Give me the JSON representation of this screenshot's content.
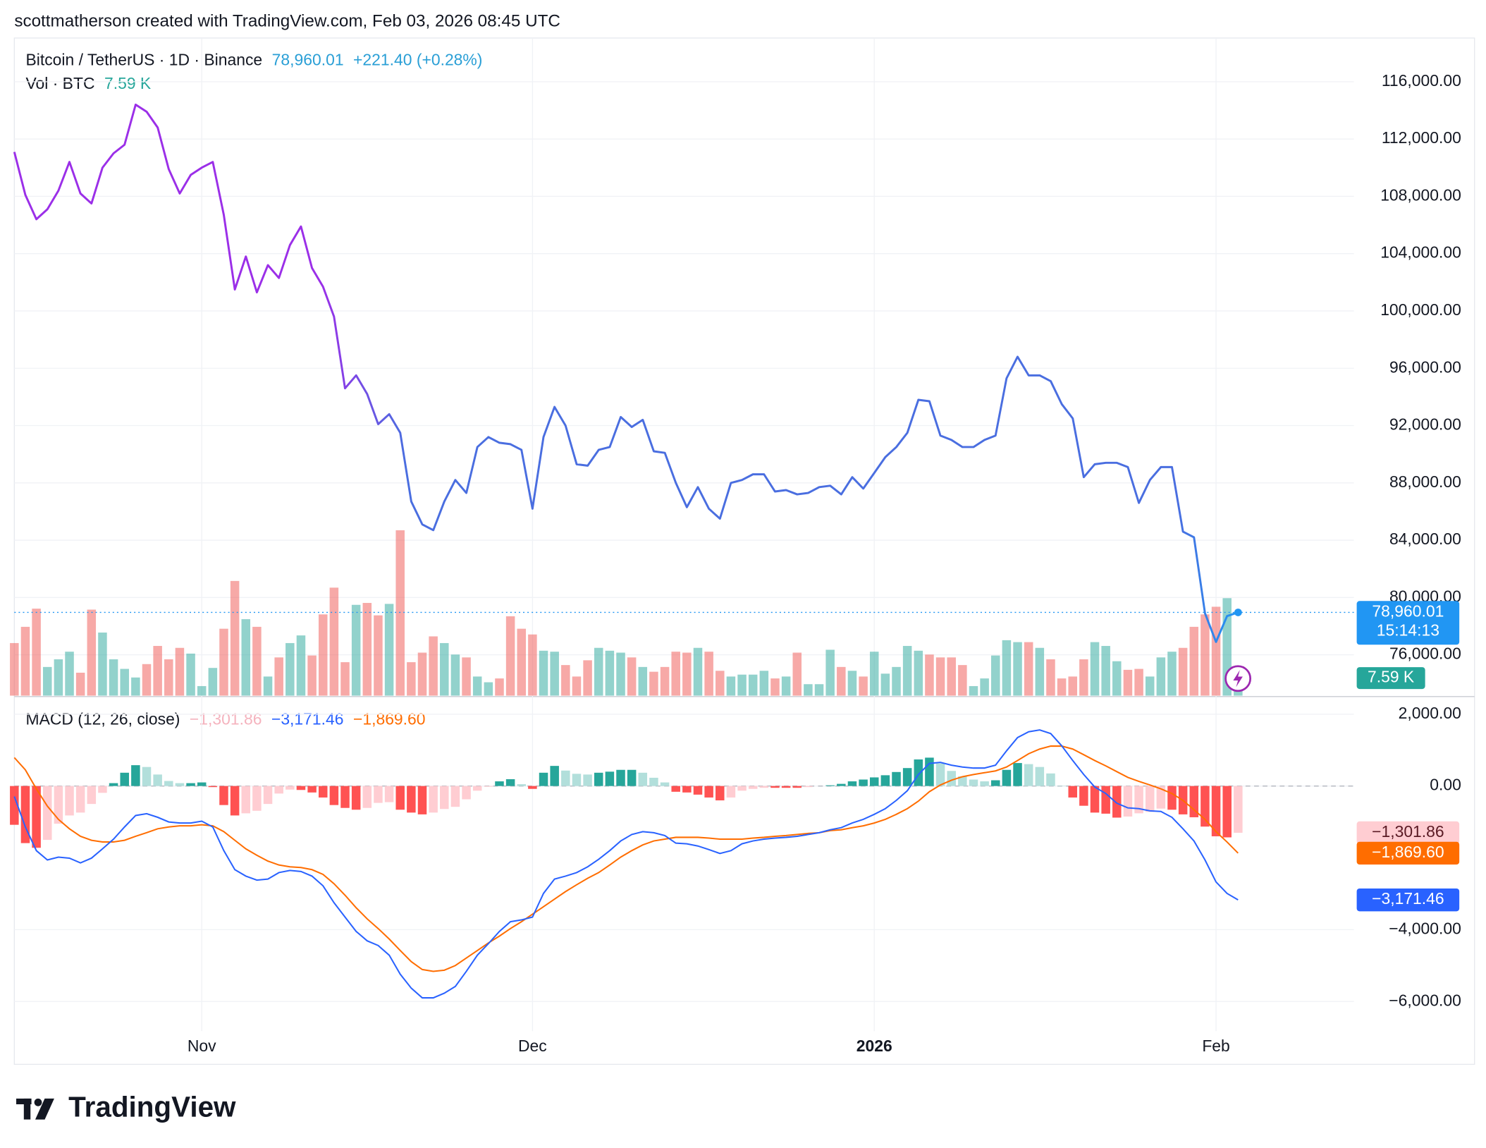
{
  "header": {
    "attribution": "scottmatherson created with TradingView.com, Feb 03, 2026 08:45 UTC",
    "brand": "TradingView"
  },
  "chart_data": [
    {
      "type": "line",
      "title": "Bitcoin / TetherUS · 1D · Binance",
      "last_label": "78,960.01",
      "change": "+221.40 (+0.28%)",
      "countdown": "15:14:13",
      "colors": [
        "#9b2fe8",
        "#4a6ee0",
        "#4a6ee0",
        "#2196f3"
      ],
      "values": [
        111100,
        108100,
        106400,
        107100,
        108400,
        110400,
        108200,
        107500,
        110000,
        111000,
        111600,
        114400,
        113900,
        112800,
        109900,
        108200,
        109500,
        110000,
        110400,
        106700,
        101500,
        103800,
        101300,
        103200,
        102300,
        104600,
        105900,
        103000,
        101700,
        99600,
        94600,
        95500,
        94200,
        92100,
        92800,
        91500,
        86700,
        85100,
        84700,
        86700,
        88200,
        87300,
        90500,
        91200,
        90800,
        90700,
        90300,
        86200,
        91200,
        93300,
        92000,
        89300,
        89200,
        90300,
        90500,
        92600,
        91900,
        92400,
        90200,
        90100,
        88000,
        86300,
        87700,
        86200,
        85500,
        88000,
        88200,
        88600,
        88600,
        87400,
        87500,
        87200,
        87300,
        87700,
        87800,
        87200,
        88400,
        87600,
        88700,
        89800,
        90500,
        91500,
        93800,
        93700,
        91300,
        91000,
        90500,
        90500,
        91000,
        91300,
        95300,
        96800,
        95500,
        95500,
        95100,
        93500,
        92500,
        88400,
        89300,
        89400,
        89400,
        89100,
        86600,
        88200,
        89100,
        89100,
        84600,
        84200,
        78900,
        76900,
        78700,
        78960.01
      ],
      "ylim": [
        73150,
        119050
      ],
      "yticks": [
        {
          "value": 76000,
          "label": "76,000.00"
        },
        {
          "value": 80000,
          "label": "80,000.00"
        },
        {
          "value": 84000,
          "label": "84,000.00"
        },
        {
          "value": 88000,
          "label": "88,000.00"
        },
        {
          "value": 92000,
          "label": "92,000.00"
        },
        {
          "value": 96000,
          "label": "96,000.00"
        },
        {
          "value": 100000,
          "label": "100,000.00"
        },
        {
          "value": 104000,
          "label": "104,000.00"
        },
        {
          "value": 108000,
          "label": "108,000.00"
        },
        {
          "value": 112000,
          "label": "112,000.00"
        },
        {
          "value": 116000,
          "label": "116,000.00"
        }
      ],
      "xlim": [
        0,
        121.5
      ],
      "xticks": [
        {
          "value": 17,
          "label": "Nov"
        },
        {
          "value": 47,
          "label": "Dec"
        },
        {
          "value": 78,
          "label": "2026"
        },
        {
          "value": 109,
          "label": "Feb"
        }
      ],
      "grid": true
    },
    {
      "type": "volume_bar",
      "title": "Vol · BTC",
      "last_label": "7.59 K",
      "up_color": "#26a69a",
      "down_color": "#ef5350",
      "values": [
        13750,
        18000,
        22750,
        7500,
        9500,
        11500,
        6000,
        22500,
        16500,
        9500,
        7000,
        4750,
        8250,
        13000,
        9500,
        12500,
        11000,
        2500,
        7250,
        17500,
        30000,
        20000,
        18000,
        5000,
        10000,
        13750,
        15750,
        10500,
        21250,
        28250,
        8750,
        23750,
        24250,
        21000,
        24000,
        43250,
        8750,
        11250,
        15500,
        13750,
        10750,
        10000,
        5000,
        3500,
        4500,
        20750,
        17500,
        16000,
        11750,
        11500,
        8000,
        5000,
        9250,
        12500,
        11750,
        11250,
        10000,
        7500,
        6250,
        7500,
        11500,
        11250,
        12500,
        11500,
        6500,
        5000,
        5500,
        5500,
        6500,
        4500,
        5000,
        11250,
        3000,
        3000,
        12000,
        7500,
        6500,
        5000,
        11500,
        5750,
        7500,
        13000,
        11750,
        10750,
        10000,
        10000,
        8000,
        2500,
        4500,
        10500,
        14500,
        14000,
        14000,
        12500,
        9500,
        4500,
        5000,
        9500,
        14000,
        13000,
        9000,
        6750,
        7000,
        5000,
        10000,
        11500,
        12500,
        18000,
        21250,
        23250,
        25500,
        7590
      ]
    },
    {
      "type": "macd",
      "title": "MACD (12, 26, close)",
      "histogram": {
        "colors": [
          "#26a69a",
          "#b2dfdb",
          "#ffcdd2",
          "#ff5252"
        ],
        "last_label": "−1,301.86",
        "values": [
          -1080,
          -1590,
          -1720,
          -1500,
          -1050,
          -820,
          -740,
          -500,
          -190,
          80,
          370,
          580,
          530,
          320,
          140,
          80,
          80,
          100,
          -30,
          -530,
          -820,
          -760,
          -690,
          -500,
          -210,
          -100,
          -110,
          -180,
          -320,
          -530,
          -610,
          -660,
          -610,
          -470,
          -450,
          -660,
          -740,
          -790,
          -740,
          -640,
          -580,
          -370,
          -130,
          -20,
          130,
          190,
          50,
          -80,
          370,
          560,
          430,
          340,
          320,
          370,
          400,
          450,
          450,
          370,
          230,
          100,
          -160,
          -180,
          -240,
          -320,
          -400,
          -320,
          -130,
          -80,
          -50,
          -50,
          -50,
          -50,
          -30,
          0,
          20,
          60,
          130,
          180,
          240,
          300,
          390,
          500,
          740,
          790,
          630,
          420,
          270,
          180,
          130,
          160,
          450,
          640,
          610,
          530,
          350,
          10,
          -320,
          -550,
          -740,
          -770,
          -880,
          -850,
          -760,
          -720,
          -630,
          -660,
          -790,
          -870,
          -1130,
          -1400,
          -1430,
          -1301.86
        ]
      },
      "macd": {
        "color": "#2962ff",
        "last_label": "−3,171.46",
        "values": [
          -290,
          -1140,
          -1800,
          -2060,
          -1980,
          -2010,
          -2140,
          -2010,
          -1750,
          -1480,
          -1140,
          -820,
          -770,
          -870,
          -1000,
          -1030,
          -1030,
          -980,
          -1140,
          -1800,
          -2330,
          -2510,
          -2620,
          -2590,
          -2410,
          -2350,
          -2380,
          -2510,
          -2780,
          -3250,
          -3650,
          -4050,
          -4310,
          -4440,
          -4710,
          -5240,
          -5630,
          -5900,
          -5900,
          -5770,
          -5580,
          -5160,
          -4710,
          -4390,
          -4050,
          -3780,
          -3730,
          -3650,
          -2990,
          -2590,
          -2510,
          -2410,
          -2250,
          -2040,
          -1800,
          -1530,
          -1350,
          -1270,
          -1300,
          -1380,
          -1590,
          -1610,
          -1670,
          -1770,
          -1880,
          -1800,
          -1610,
          -1530,
          -1480,
          -1450,
          -1430,
          -1400,
          -1350,
          -1300,
          -1220,
          -1160,
          -1030,
          -930,
          -790,
          -630,
          -400,
          -130,
          320,
          630,
          660,
          580,
          530,
          500,
          500,
          580,
          980,
          1350,
          1510,
          1560,
          1460,
          1120,
          710,
          320,
          -30,
          -210,
          -480,
          -610,
          -630,
          -690,
          -710,
          -870,
          -1190,
          -1530,
          -2060,
          -2670,
          -2990,
          -3171.46
        ]
      },
      "signal": {
        "color": "#ff6d00",
        "last_label": "−1,869.60",
        "values": [
          790,
          450,
          -80,
          -560,
          -930,
          -1190,
          -1400,
          -1510,
          -1560,
          -1560,
          -1510,
          -1400,
          -1300,
          -1190,
          -1140,
          -1110,
          -1110,
          -1080,
          -1110,
          -1270,
          -1510,
          -1750,
          -1930,
          -2090,
          -2200,
          -2250,
          -2270,
          -2330,
          -2460,
          -2720,
          -3040,
          -3390,
          -3700,
          -3970,
          -4260,
          -4580,
          -4890,
          -5110,
          -5160,
          -5130,
          -5000,
          -4790,
          -4580,
          -4370,
          -4180,
          -3970,
          -3780,
          -3570,
          -3360,
          -3150,
          -2940,
          -2750,
          -2570,
          -2410,
          -2200,
          -1980,
          -1800,
          -1640,
          -1530,
          -1480,
          -1430,
          -1430,
          -1430,
          -1450,
          -1480,
          -1480,
          -1480,
          -1450,
          -1430,
          -1400,
          -1380,
          -1350,
          -1320,
          -1300,
          -1240,
          -1220,
          -1160,
          -1110,
          -1030,
          -930,
          -790,
          -630,
          -420,
          -160,
          30,
          160,
          260,
          320,
          370,
          420,
          530,
          710,
          900,
          1030,
          1110,
          1110,
          1030,
          870,
          710,
          560,
          400,
          240,
          130,
          30,
          -80,
          -210,
          -400,
          -660,
          -930,
          -1270,
          -1560,
          -1869.6
        ]
      },
      "ylim": [
        -6825,
        2490
      ],
      "yticks": [
        {
          "value": 2000,
          "label": "2,000.00"
        },
        {
          "value": 0,
          "label": "0.00"
        },
        {
          "value": -4000,
          "label": "−4,000.00"
        },
        {
          "value": -6000,
          "label": "−6,000.00"
        }
      ]
    }
  ]
}
